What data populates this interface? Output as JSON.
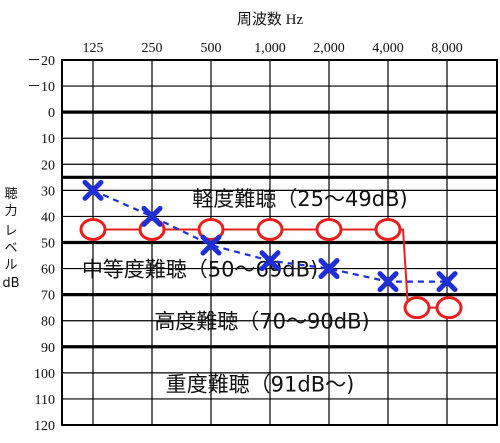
{
  "chart_data": {
    "type": "line",
    "title": "周波数 Hz",
    "ylabel": [
      "聴",
      "力",
      "レ",
      "ベ",
      "ル",
      "dB"
    ],
    "x": [
      125,
      250,
      500,
      1000,
      2000,
      4000,
      8000
    ],
    "xtick_labels": [
      "125",
      "250",
      "500",
      "1,000",
      "2,000",
      "4,000",
      "8,000"
    ],
    "yticks": [
      -20,
      -10,
      0,
      10,
      20,
      30,
      40,
      50,
      60,
      70,
      80,
      90,
      100,
      110,
      120
    ],
    "ytick_labels": [
      "－20",
      "－10",
      "0",
      "10",
      "20",
      "30",
      "40",
      "50",
      "60",
      "70",
      "80",
      "90",
      "100",
      "110",
      "120"
    ],
    "ylim": [
      -20,
      120
    ],
    "y_inverted": true,
    "thick_lines": [
      0,
      25,
      50,
      70,
      90
    ],
    "grid": true,
    "zones": [
      {
        "label": "軽度難聴（25～49dB)",
        "y": 33
      },
      {
        "label": "中等度難聴（50～69dB)",
        "y": 60
      },
      {
        "label": "高度難聴（70～90dB)",
        "y": 80
      },
      {
        "label": "重度難聴（91dB～)",
        "y": 104
      }
    ],
    "series": [
      {
        "marker": "x",
        "color": "#1f2fd6",
        "style": "dashed",
        "values": [
          30,
          40,
          51,
          57,
          60,
          65,
          65
        ]
      },
      {
        "marker": "o",
        "color": "#e8201d",
        "style": "solid",
        "values": [
          45,
          45,
          45,
          45,
          45,
          45,
          75
        ]
      }
    ]
  }
}
